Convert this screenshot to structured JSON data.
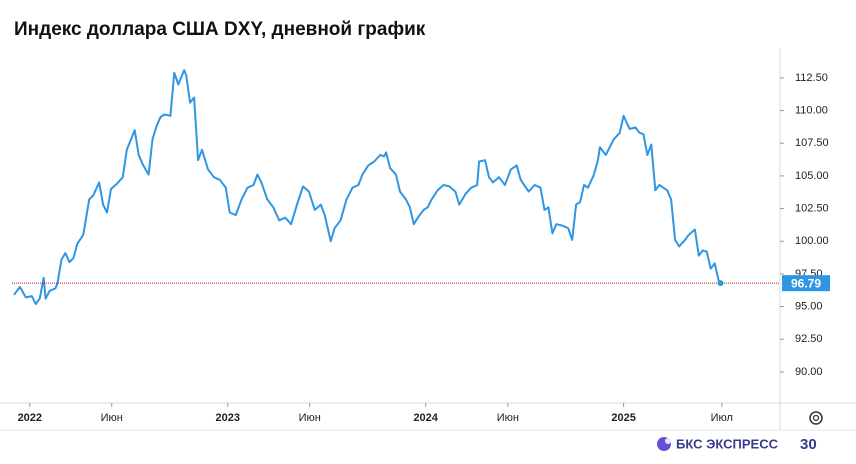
{
  "chart_data": {
    "type": "line",
    "title": "Индекс доллара США DXY, дневной график",
    "x": [
      2021.92,
      2021.95,
      2021.98,
      2022.01,
      2022.03,
      2022.05,
      2022.07,
      2022.08,
      2022.1,
      2022.13,
      2022.14,
      2022.16,
      2022.18,
      2022.2,
      2022.22,
      2022.24,
      2022.27,
      2022.3,
      2022.32,
      2022.35,
      2022.37,
      2022.39,
      2022.41,
      2022.44,
      2022.47,
      2022.49,
      2022.53,
      2022.55,
      2022.57,
      2022.6,
      2022.62,
      2022.64,
      2022.66,
      2022.68,
      2022.71,
      2022.73,
      2022.75,
      2022.78,
      2022.79,
      2022.81,
      2022.83,
      2022.85,
      2022.87,
      2022.9,
      2022.93,
      2022.96,
      2022.99,
      2023.01,
      2023.04,
      2023.07,
      2023.1,
      2023.13,
      2023.15,
      2023.17,
      2023.2,
      2023.23,
      2023.26,
      2023.29,
      2023.32,
      2023.35,
      2023.38,
      2023.41,
      2023.44,
      2023.47,
      2023.49,
      2023.52,
      2023.54,
      2023.57,
      2023.6,
      2023.63,
      2023.66,
      2023.68,
      2023.71,
      2023.74,
      2023.77,
      2023.79,
      2023.8,
      2023.82,
      2023.85,
      2023.87,
      2023.9,
      2023.92,
      2023.94,
      2023.96,
      2023.99,
      2024.01,
      2024.03,
      2024.06,
      2024.09,
      2024.12,
      2024.15,
      2024.17,
      2024.2,
      2024.23,
      2024.26,
      2024.27,
      2024.3,
      2024.32,
      2024.34,
      2024.37,
      2024.4,
      2024.43,
      2024.46,
      2024.48,
      2024.52,
      2024.55,
      2024.58,
      2024.6,
      2024.62,
      2024.64,
      2024.66,
      2024.69,
      2024.72,
      2024.74,
      2024.76,
      2024.78,
      2024.8,
      2024.82,
      2024.85,
      2024.87,
      2024.88,
      2024.91,
      2024.93,
      2024.95,
      2024.98,
      2025.0,
      2025.03,
      2025.06,
      2025.08,
      2025.1,
      2025.12,
      2025.14,
      2025.16,
      2025.18,
      2025.2,
      2025.22,
      2025.24,
      2025.26,
      2025.28,
      2025.31,
      2025.33,
      2025.36,
      2025.38,
      2025.4,
      2025.42,
      2025.44,
      2025.46,
      2025.48,
      2025.49
    ],
    "series": [
      {
        "color": "#2f96e4",
        "values": [
          95.9,
          96.5,
          95.7,
          95.8,
          95.2,
          95.6,
          97.2,
          95.6,
          96.2,
          96.4,
          96.8,
          98.6,
          99.1,
          98.4,
          98.7,
          99.8,
          100.5,
          103.2,
          103.5,
          104.5,
          102.8,
          102.2,
          104.0,
          104.4,
          104.9,
          107.0,
          108.5,
          106.6,
          105.9,
          105.1,
          107.8,
          108.8,
          109.5,
          109.7,
          109.6,
          112.9,
          112.0,
          113.1,
          112.7,
          110.6,
          111.0,
          106.2,
          107.0,
          105.5,
          104.9,
          104.7,
          104.1,
          102.2,
          102.0,
          103.2,
          104.1,
          104.3,
          105.1,
          104.5,
          103.2,
          102.6,
          101.6,
          101.8,
          101.3,
          102.8,
          104.2,
          103.8,
          102.4,
          102.8,
          102.0,
          100.0,
          101.0,
          101.6,
          103.2,
          104.1,
          104.3,
          105.1,
          105.8,
          106.1,
          106.6,
          106.5,
          106.8,
          105.6,
          105.1,
          103.8,
          103.2,
          102.6,
          101.3,
          101.8,
          102.4,
          102.6,
          103.2,
          103.9,
          104.3,
          104.2,
          103.8,
          102.8,
          103.6,
          104.1,
          104.3,
          106.1,
          106.2,
          104.9,
          104.5,
          104.9,
          104.3,
          105.5,
          105.8,
          104.7,
          103.8,
          104.3,
          104.1,
          102.4,
          102.6,
          100.6,
          101.3,
          101.2,
          101.0,
          100.1,
          102.8,
          103.0,
          104.3,
          104.1,
          105.1,
          106.2,
          107.2,
          106.6,
          107.2,
          107.8,
          108.3,
          109.6,
          108.6,
          108.7,
          108.3,
          108.2,
          106.6,
          107.4,
          103.9,
          104.3,
          104.1,
          103.9,
          103.2,
          100.1,
          99.6,
          100.1,
          100.5,
          100.9,
          98.9,
          99.3,
          99.2,
          97.9,
          98.3,
          97.0,
          96.79
        ]
      }
    ],
    "last_value_line_color": "#c0143c",
    "xlim": [
      2021.91,
      2025.79
    ],
    "xticks": [
      {
        "value": 2022,
        "label": "2022"
      },
      {
        "value": 2022.414,
        "label": "Июн"
      },
      {
        "value": 2023,
        "label": "2023"
      },
      {
        "value": 2023.414,
        "label": "Июн"
      },
      {
        "value": 2024,
        "label": "2024"
      },
      {
        "value": 2024.415,
        "label": "Июн"
      },
      {
        "value": 2025,
        "label": "2025"
      },
      {
        "value": 2025.496,
        "label": "Июл"
      }
    ],
    "ylim": [
      87.85,
      115.4
    ],
    "yticks": [
      {
        "value": 90,
        "label": "90.00"
      },
      {
        "value": 92.5,
        "label": "92.50"
      },
      {
        "value": 95,
        "label": "95.00"
      },
      {
        "value": 97.5,
        "label": "97.50"
      },
      {
        "value": 100,
        "label": "100.00"
      },
      {
        "value": 102.5,
        "label": "102.50"
      },
      {
        "value": 105,
        "label": "105.00"
      },
      {
        "value": 107.5,
        "label": "107.50"
      },
      {
        "value": 110,
        "label": "110.00"
      },
      {
        "value": 112.5,
        "label": "112.50"
      }
    ],
    "grid": false
  },
  "footer": {
    "brand": "БКС ЭКСПРЕСС",
    "badge": "30"
  }
}
